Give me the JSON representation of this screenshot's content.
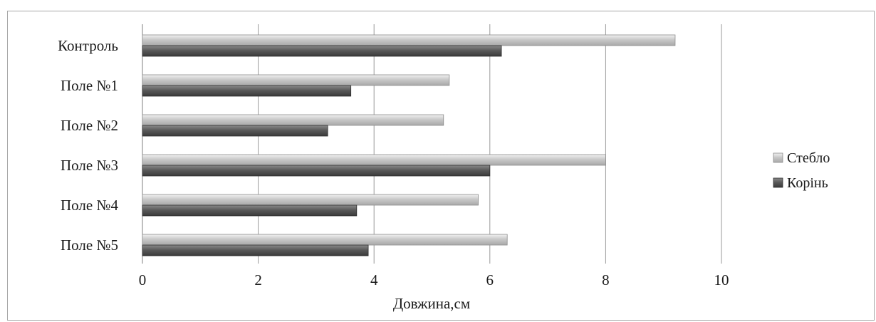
{
  "chart_data": {
    "type": "bar",
    "orientation": "horizontal",
    "categories": [
      "Контроль",
      "Поле №1",
      "Поле №2",
      "Поле №3",
      "Поле №4",
      "Поле №5"
    ],
    "series": [
      {
        "name": "Стебло",
        "values": [
          9.2,
          5.3,
          5.2,
          8.0,
          5.8,
          6.3
        ],
        "color": "#c8c8c8"
      },
      {
        "name": "Корінь",
        "values": [
          6.2,
          3.6,
          3.2,
          6.0,
          3.7,
          3.9
        ],
        "color": "#5a5a5a"
      }
    ],
    "xlabel": "Довжина,см",
    "ylabel": "",
    "xlim": [
      0,
      10
    ],
    "xticks": [
      "0",
      "2",
      "4",
      "6",
      "8",
      "10"
    ],
    "grid": "vertical",
    "legend": "right"
  }
}
